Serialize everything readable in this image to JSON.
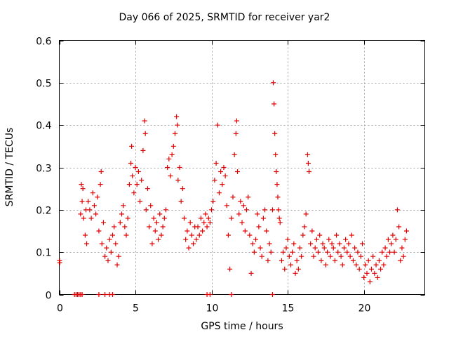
{
  "chart_data": {
    "type": "scatter",
    "title": "Day 066 of 2025, SRMTID for receiver yar2",
    "xlabel": "GPS time / hours",
    "ylabel": "SRMTID / TECUs",
    "xlim": [
      0,
      24
    ],
    "ylim": [
      0,
      0.6
    ],
    "xticks": [
      0,
      5,
      10,
      15,
      20
    ],
    "yticks": [
      0,
      0.1,
      0.2,
      0.3,
      0.4,
      0.5,
      0.6
    ],
    "ytick_labels": [
      "0",
      "0.1",
      "0.2",
      "0.3",
      "0.4",
      "0.5",
      "0.6"
    ],
    "grid": true,
    "marker": "+",
    "color": "#e00000",
    "series": [
      {
        "name": "SRMTID",
        "points": [
          [
            0.02,
            0.08
          ],
          [
            0.03,
            0.075
          ],
          [
            1.0,
            0.0
          ],
          [
            1.1,
            0.0
          ],
          [
            1.2,
            0.0
          ],
          [
            1.3,
            0.0
          ],
          [
            1.4,
            0.0
          ],
          [
            1.5,
            0.0
          ],
          [
            1.4,
            0.19
          ],
          [
            1.45,
            0.26
          ],
          [
            1.5,
            0.22
          ],
          [
            1.55,
            0.25
          ],
          [
            1.6,
            0.18
          ],
          [
            1.7,
            0.14
          ],
          [
            1.75,
            0.2
          ],
          [
            1.8,
            0.12
          ],
          [
            1.9,
            0.22
          ],
          [
            2.0,
            0.2
          ],
          [
            2.1,
            0.18
          ],
          [
            2.2,
            0.24
          ],
          [
            2.3,
            0.21
          ],
          [
            2.4,
            0.19
          ],
          [
            2.5,
            0.23
          ],
          [
            2.6,
            0.15
          ],
          [
            2.7,
            0.26
          ],
          [
            2.75,
            0.29
          ],
          [
            2.8,
            0.12
          ],
          [
            2.9,
            0.17
          ],
          [
            2.6,
            0.0
          ],
          [
            3.0,
            0.0
          ],
          [
            3.3,
            0.0
          ],
          [
            3.5,
            0.0
          ],
          [
            3.0,
            0.09
          ],
          [
            3.1,
            0.11
          ],
          [
            3.2,
            0.08
          ],
          [
            3.3,
            0.13
          ],
          [
            3.4,
            0.1
          ],
          [
            3.5,
            0.14
          ],
          [
            3.6,
            0.16
          ],
          [
            3.7,
            0.12
          ],
          [
            3.8,
            0.07
          ],
          [
            3.9,
            0.09
          ],
          [
            4.0,
            0.17
          ],
          [
            4.1,
            0.19
          ],
          [
            4.2,
            0.21
          ],
          [
            4.3,
            0.16
          ],
          [
            4.4,
            0.14
          ],
          [
            4.5,
            0.18
          ],
          [
            4.6,
            0.26
          ],
          [
            4.7,
            0.31
          ],
          [
            4.75,
            0.35
          ],
          [
            4.8,
            0.28
          ],
          [
            4.9,
            0.24
          ],
          [
            5.0,
            0.3
          ],
          [
            5.1,
            0.26
          ],
          [
            5.2,
            0.29
          ],
          [
            5.3,
            0.22
          ],
          [
            5.4,
            0.27
          ],
          [
            5.5,
            0.34
          ],
          [
            5.6,
            0.41
          ],
          [
            5.65,
            0.38
          ],
          [
            5.7,
            0.2
          ],
          [
            5.8,
            0.25
          ],
          [
            5.9,
            0.16
          ],
          [
            6.0,
            0.21
          ],
          [
            6.1,
            0.12
          ],
          [
            6.2,
            0.18
          ],
          [
            6.3,
            0.15
          ],
          [
            6.4,
            0.17
          ],
          [
            6.5,
            0.13
          ],
          [
            6.6,
            0.19
          ],
          [
            6.7,
            0.14
          ],
          [
            6.8,
            0.16
          ],
          [
            6.9,
            0.18
          ],
          [
            7.0,
            0.2
          ],
          [
            7.1,
            0.3
          ],
          [
            7.2,
            0.32
          ],
          [
            7.3,
            0.28
          ],
          [
            7.4,
            0.33
          ],
          [
            7.5,
            0.35
          ],
          [
            7.6,
            0.38
          ],
          [
            7.7,
            0.42
          ],
          [
            7.75,
            0.4
          ],
          [
            7.8,
            0.27
          ],
          [
            7.9,
            0.3
          ],
          [
            8.0,
            0.22
          ],
          [
            8.1,
            0.25
          ],
          [
            8.2,
            0.18
          ],
          [
            8.3,
            0.13
          ],
          [
            8.4,
            0.15
          ],
          [
            8.5,
            0.11
          ],
          [
            8.6,
            0.17
          ],
          [
            8.7,
            0.14
          ],
          [
            8.8,
            0.12
          ],
          [
            8.9,
            0.16
          ],
          [
            9.0,
            0.13
          ],
          [
            9.1,
            0.16
          ],
          [
            9.2,
            0.14
          ],
          [
            9.3,
            0.18
          ],
          [
            9.4,
            0.15
          ],
          [
            9.5,
            0.17
          ],
          [
            9.6,
            0.19
          ],
          [
            9.7,
            0.16
          ],
          [
            9.8,
            0.18
          ],
          [
            9.9,
            0.17
          ],
          [
            9.7,
            0.0
          ],
          [
            9.9,
            0.0
          ],
          [
            11.3,
            0.0
          ],
          [
            14.0,
            0.0
          ],
          [
            10.0,
            0.2
          ],
          [
            10.1,
            0.22
          ],
          [
            10.2,
            0.27
          ],
          [
            10.3,
            0.31
          ],
          [
            10.4,
            0.4
          ],
          [
            10.5,
            0.24
          ],
          [
            10.6,
            0.29
          ],
          [
            10.7,
            0.26
          ],
          [
            10.8,
            0.3
          ],
          [
            10.9,
            0.28
          ],
          [
            11.0,
            0.21
          ],
          [
            11.1,
            0.14
          ],
          [
            11.2,
            0.06
          ],
          [
            11.3,
            0.18
          ],
          [
            11.4,
            0.23
          ],
          [
            11.5,
            0.33
          ],
          [
            11.6,
            0.38
          ],
          [
            11.65,
            0.41
          ],
          [
            11.7,
            0.29
          ],
          [
            11.8,
            0.19
          ],
          [
            11.9,
            0.22
          ],
          [
            12.0,
            0.17
          ],
          [
            12.1,
            0.21
          ],
          [
            12.2,
            0.15
          ],
          [
            12.3,
            0.2
          ],
          [
            12.4,
            0.23
          ],
          [
            12.5,
            0.14
          ],
          [
            12.6,
            0.05
          ],
          [
            12.7,
            0.12
          ],
          [
            12.8,
            0.1
          ],
          [
            12.9,
            0.13
          ],
          [
            13.0,
            0.19
          ],
          [
            13.1,
            0.16
          ],
          [
            13.2,
            0.11
          ],
          [
            13.3,
            0.09
          ],
          [
            13.4,
            0.18
          ],
          [
            13.5,
            0.2
          ],
          [
            13.6,
            0.15
          ],
          [
            13.7,
            0.08
          ],
          [
            13.8,
            0.12
          ],
          [
            13.9,
            0.1
          ],
          [
            14.0,
            0.2
          ],
          [
            14.05,
            0.5
          ],
          [
            14.1,
            0.45
          ],
          [
            14.15,
            0.38
          ],
          [
            14.2,
            0.33
          ],
          [
            14.25,
            0.29
          ],
          [
            14.3,
            0.26
          ],
          [
            14.35,
            0.23
          ],
          [
            14.4,
            0.2
          ],
          [
            14.45,
            0.18
          ],
          [
            14.5,
            0.17
          ],
          [
            14.6,
            0.08
          ],
          [
            14.7,
            0.1
          ],
          [
            14.8,
            0.06
          ],
          [
            14.9,
            0.11
          ],
          [
            15.0,
            0.13
          ],
          [
            15.1,
            0.09
          ],
          [
            15.2,
            0.07
          ],
          [
            15.3,
            0.1
          ],
          [
            15.4,
            0.12
          ],
          [
            15.5,
            0.05
          ],
          [
            15.6,
            0.08
          ],
          [
            15.7,
            0.06
          ],
          [
            15.8,
            0.11
          ],
          [
            15.9,
            0.09
          ],
          [
            16.0,
            0.14
          ],
          [
            16.1,
            0.16
          ],
          [
            16.2,
            0.19
          ],
          [
            16.3,
            0.33
          ],
          [
            16.35,
            0.31
          ],
          [
            16.4,
            0.29
          ],
          [
            16.5,
            0.12
          ],
          [
            16.6,
            0.15
          ],
          [
            16.7,
            0.09
          ],
          [
            16.8,
            0.11
          ],
          [
            16.9,
            0.13
          ],
          [
            17.0,
            0.1
          ],
          [
            17.1,
            0.14
          ],
          [
            17.2,
            0.08
          ],
          [
            17.3,
            0.12
          ],
          [
            17.4,
            0.11
          ],
          [
            17.5,
            0.07
          ],
          [
            17.6,
            0.1
          ],
          [
            17.7,
            0.13
          ],
          [
            17.8,
            0.09
          ],
          [
            17.9,
            0.12
          ],
          [
            18.0,
            0.11
          ],
          [
            18.1,
            0.08
          ],
          [
            18.2,
            0.14
          ],
          [
            18.3,
            0.1
          ],
          [
            18.4,
            0.12
          ],
          [
            18.5,
            0.09
          ],
          [
            18.6,
            0.07
          ],
          [
            18.7,
            0.11
          ],
          [
            18.8,
            0.13
          ],
          [
            18.9,
            0.1
          ],
          [
            19.0,
            0.12
          ],
          [
            19.1,
            0.09
          ],
          [
            19.2,
            0.14
          ],
          [
            19.3,
            0.08
          ],
          [
            19.4,
            0.11
          ],
          [
            19.5,
            0.07
          ],
          [
            19.6,
            0.1
          ],
          [
            19.7,
            0.06
          ],
          [
            19.8,
            0.09
          ],
          [
            19.9,
            0.12
          ],
          [
            20.0,
            0.04
          ],
          [
            20.1,
            0.07
          ],
          [
            20.2,
            0.05
          ],
          [
            20.3,
            0.08
          ],
          [
            20.4,
            0.03
          ],
          [
            20.5,
            0.06
          ],
          [
            20.6,
            0.09
          ],
          [
            20.7,
            0.05
          ],
          [
            20.8,
            0.07
          ],
          [
            20.9,
            0.04
          ],
          [
            21.0,
            0.08
          ],
          [
            21.1,
            0.06
          ],
          [
            21.2,
            0.1
          ],
          [
            21.3,
            0.07
          ],
          [
            21.4,
            0.11
          ],
          [
            21.5,
            0.09
          ],
          [
            21.6,
            0.13
          ],
          [
            21.7,
            0.1
          ],
          [
            21.8,
            0.12
          ],
          [
            21.9,
            0.14
          ],
          [
            22.0,
            0.1
          ],
          [
            22.1,
            0.13
          ],
          [
            22.2,
            0.2
          ],
          [
            22.3,
            0.16
          ],
          [
            22.4,
            0.08
          ],
          [
            22.5,
            0.11
          ],
          [
            22.6,
            0.09
          ],
          [
            22.7,
            0.13
          ],
          [
            22.8,
            0.15
          ]
        ]
      }
    ]
  }
}
